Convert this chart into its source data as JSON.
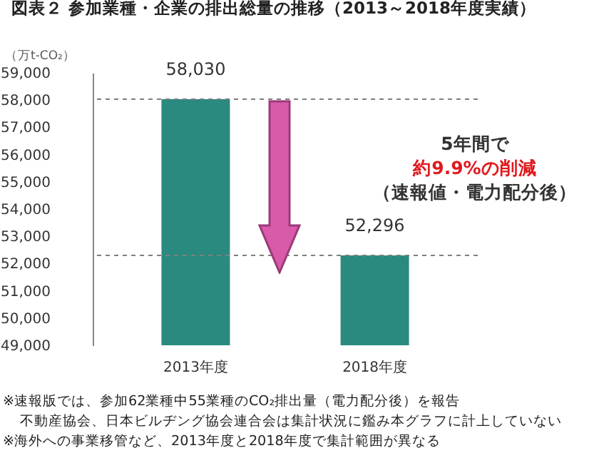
{
  "chart_data": {
    "type": "bar",
    "title": "図表２ 参加業種・企業の排出総量の推移（2013～2018年度実績）",
    "ylabel": "（万t-CO₂）",
    "categories": [
      "2013年度",
      "2018年度"
    ],
    "values": [
      58030,
      52296
    ],
    "value_labels": [
      "58,030",
      "52,296"
    ],
    "color": "#2a8a80",
    "ylim": [
      49000,
      59000
    ],
    "yticks": [
      {
        "value": 49000,
        "label": "49,000"
      },
      {
        "value": 50000,
        "label": "50,000"
      },
      {
        "value": 51000,
        "label": "51,000"
      },
      {
        "value": 52000,
        "label": "52,000"
      },
      {
        "value": 53000,
        "label": "53,000"
      },
      {
        "value": 54000,
        "label": "54,000"
      },
      {
        "value": 55000,
        "label": "55,000"
      },
      {
        "value": 56000,
        "label": "56,000"
      },
      {
        "value": 57000,
        "label": "57,000"
      },
      {
        "value": 58000,
        "label": "58,000"
      },
      {
        "value": 59000,
        "label": "59,000"
      }
    ],
    "ref_lines": [
      {
        "axis": "y",
        "value": 58030,
        "color": "#808080",
        "line_style": "dashed"
      },
      {
        "axis": "y",
        "value": 52296,
        "color": "#808080",
        "line_style": "dashed"
      }
    ],
    "annotations": [
      "5年間で",
      "約9.9%の削減",
      "（速報値・電力配分後）",
      "※速報版では、参加62業種中55業種のCO₂排出量（電力配分後）を報告",
      "不動産協会、日本ビルヂング協会連合会は集計状況に鑑み本グラフに計上していない",
      "※海外への事業移管など、2013年度と2018年度で集計範囲が異なる"
    ]
  }
}
